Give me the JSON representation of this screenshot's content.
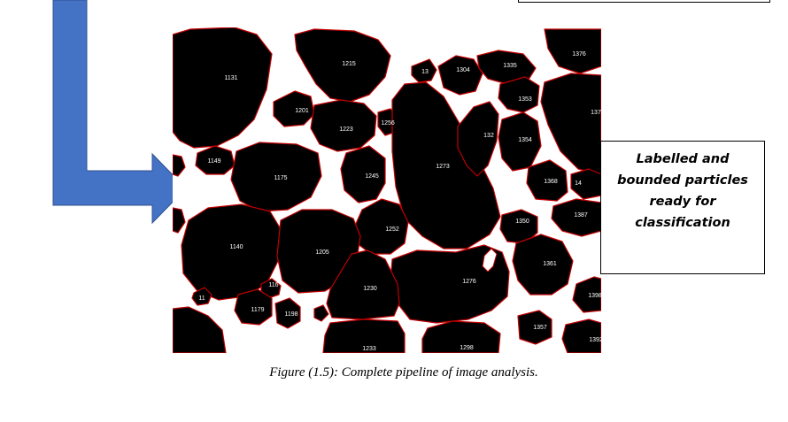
{
  "callout": {
    "text": "Labelled and bounded particles ready for classification"
  },
  "caption": "Figure (1.5): Complete pipeline of image analysis.",
  "particles": {
    "p1131": "1131",
    "p1215": "1215",
    "p1304": "1304",
    "p1335": "1335",
    "p1376": "1376",
    "p13": "13",
    "p1201": "1201",
    "p1223": "1223",
    "p1256": "1256",
    "p1353": "1353",
    "p137": "137",
    "p132": "132",
    "p1354": "1354",
    "p1149": "1149",
    "p1175": "1175",
    "p1245": "1245",
    "p1273": "1273",
    "p1368": "1368",
    "p14": "14",
    "p1387": "1387",
    "p1350": "1350",
    "p1252": "1252",
    "p1140": "1140",
    "p1205": "1205",
    "p1361": "1361",
    "p1276": "1276",
    "p1230": "1230",
    "p116": "116",
    "p1179": "1179",
    "p1198": "1198",
    "p11": "11",
    "p1398": "1398",
    "p1357": "1357",
    "p1392": "1392",
    "p1233": "1233",
    "p1298": "1298"
  },
  "colors": {
    "arrow": "#4472c4",
    "arrow_outline": "#2f528f",
    "particle": "#000000",
    "outline": "#c00000"
  }
}
